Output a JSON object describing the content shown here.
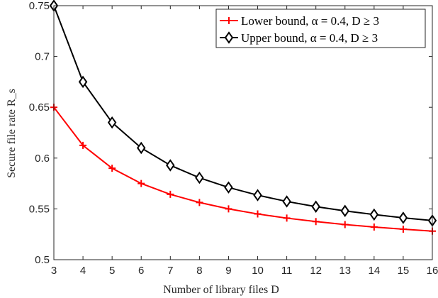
{
  "chart_data": {
    "type": "line",
    "title": "",
    "xlabel": "Number of library files D",
    "ylabel": "Secure file rate R_s",
    "xlim": [
      3,
      16
    ],
    "ylim": [
      0.5,
      0.75
    ],
    "x": [
      3,
      4,
      5,
      6,
      7,
      8,
      9,
      10,
      11,
      12,
      13,
      14,
      15,
      16
    ],
    "x_ticks": [
      "3",
      "4",
      "5",
      "6",
      "7",
      "8",
      "9",
      "10",
      "11",
      "12",
      "13",
      "14",
      "15",
      "16"
    ],
    "y_ticks": [
      "0.5",
      "0.55",
      "0.6",
      "0.65",
      "0.7",
      "0.75"
    ],
    "y_tick_values": [
      0.5,
      0.55,
      0.6,
      0.65,
      0.7,
      0.75
    ],
    "grid": false,
    "legend_position": "top-right",
    "series": [
      {
        "name": "Lower bound, α = 0.4, D ≥ 3",
        "color": "#ff0000",
        "marker": "plus",
        "values": [
          0.65,
          0.6125,
          0.59,
          0.575,
          0.5643,
          0.5563,
          0.55,
          0.545,
          0.5409,
          0.5375,
          0.5346,
          0.5321,
          0.53,
          0.5281
        ]
      },
      {
        "name": "Upper bound, α = 0.4, D ≥ 3",
        "color": "#000000",
        "marker": "diamond",
        "values": [
          0.75,
          0.675,
          0.635,
          0.61,
          0.5929,
          0.5806,
          0.5711,
          0.5635,
          0.5573,
          0.5522,
          0.548,
          0.5444,
          0.5412,
          0.5385
        ]
      }
    ]
  }
}
